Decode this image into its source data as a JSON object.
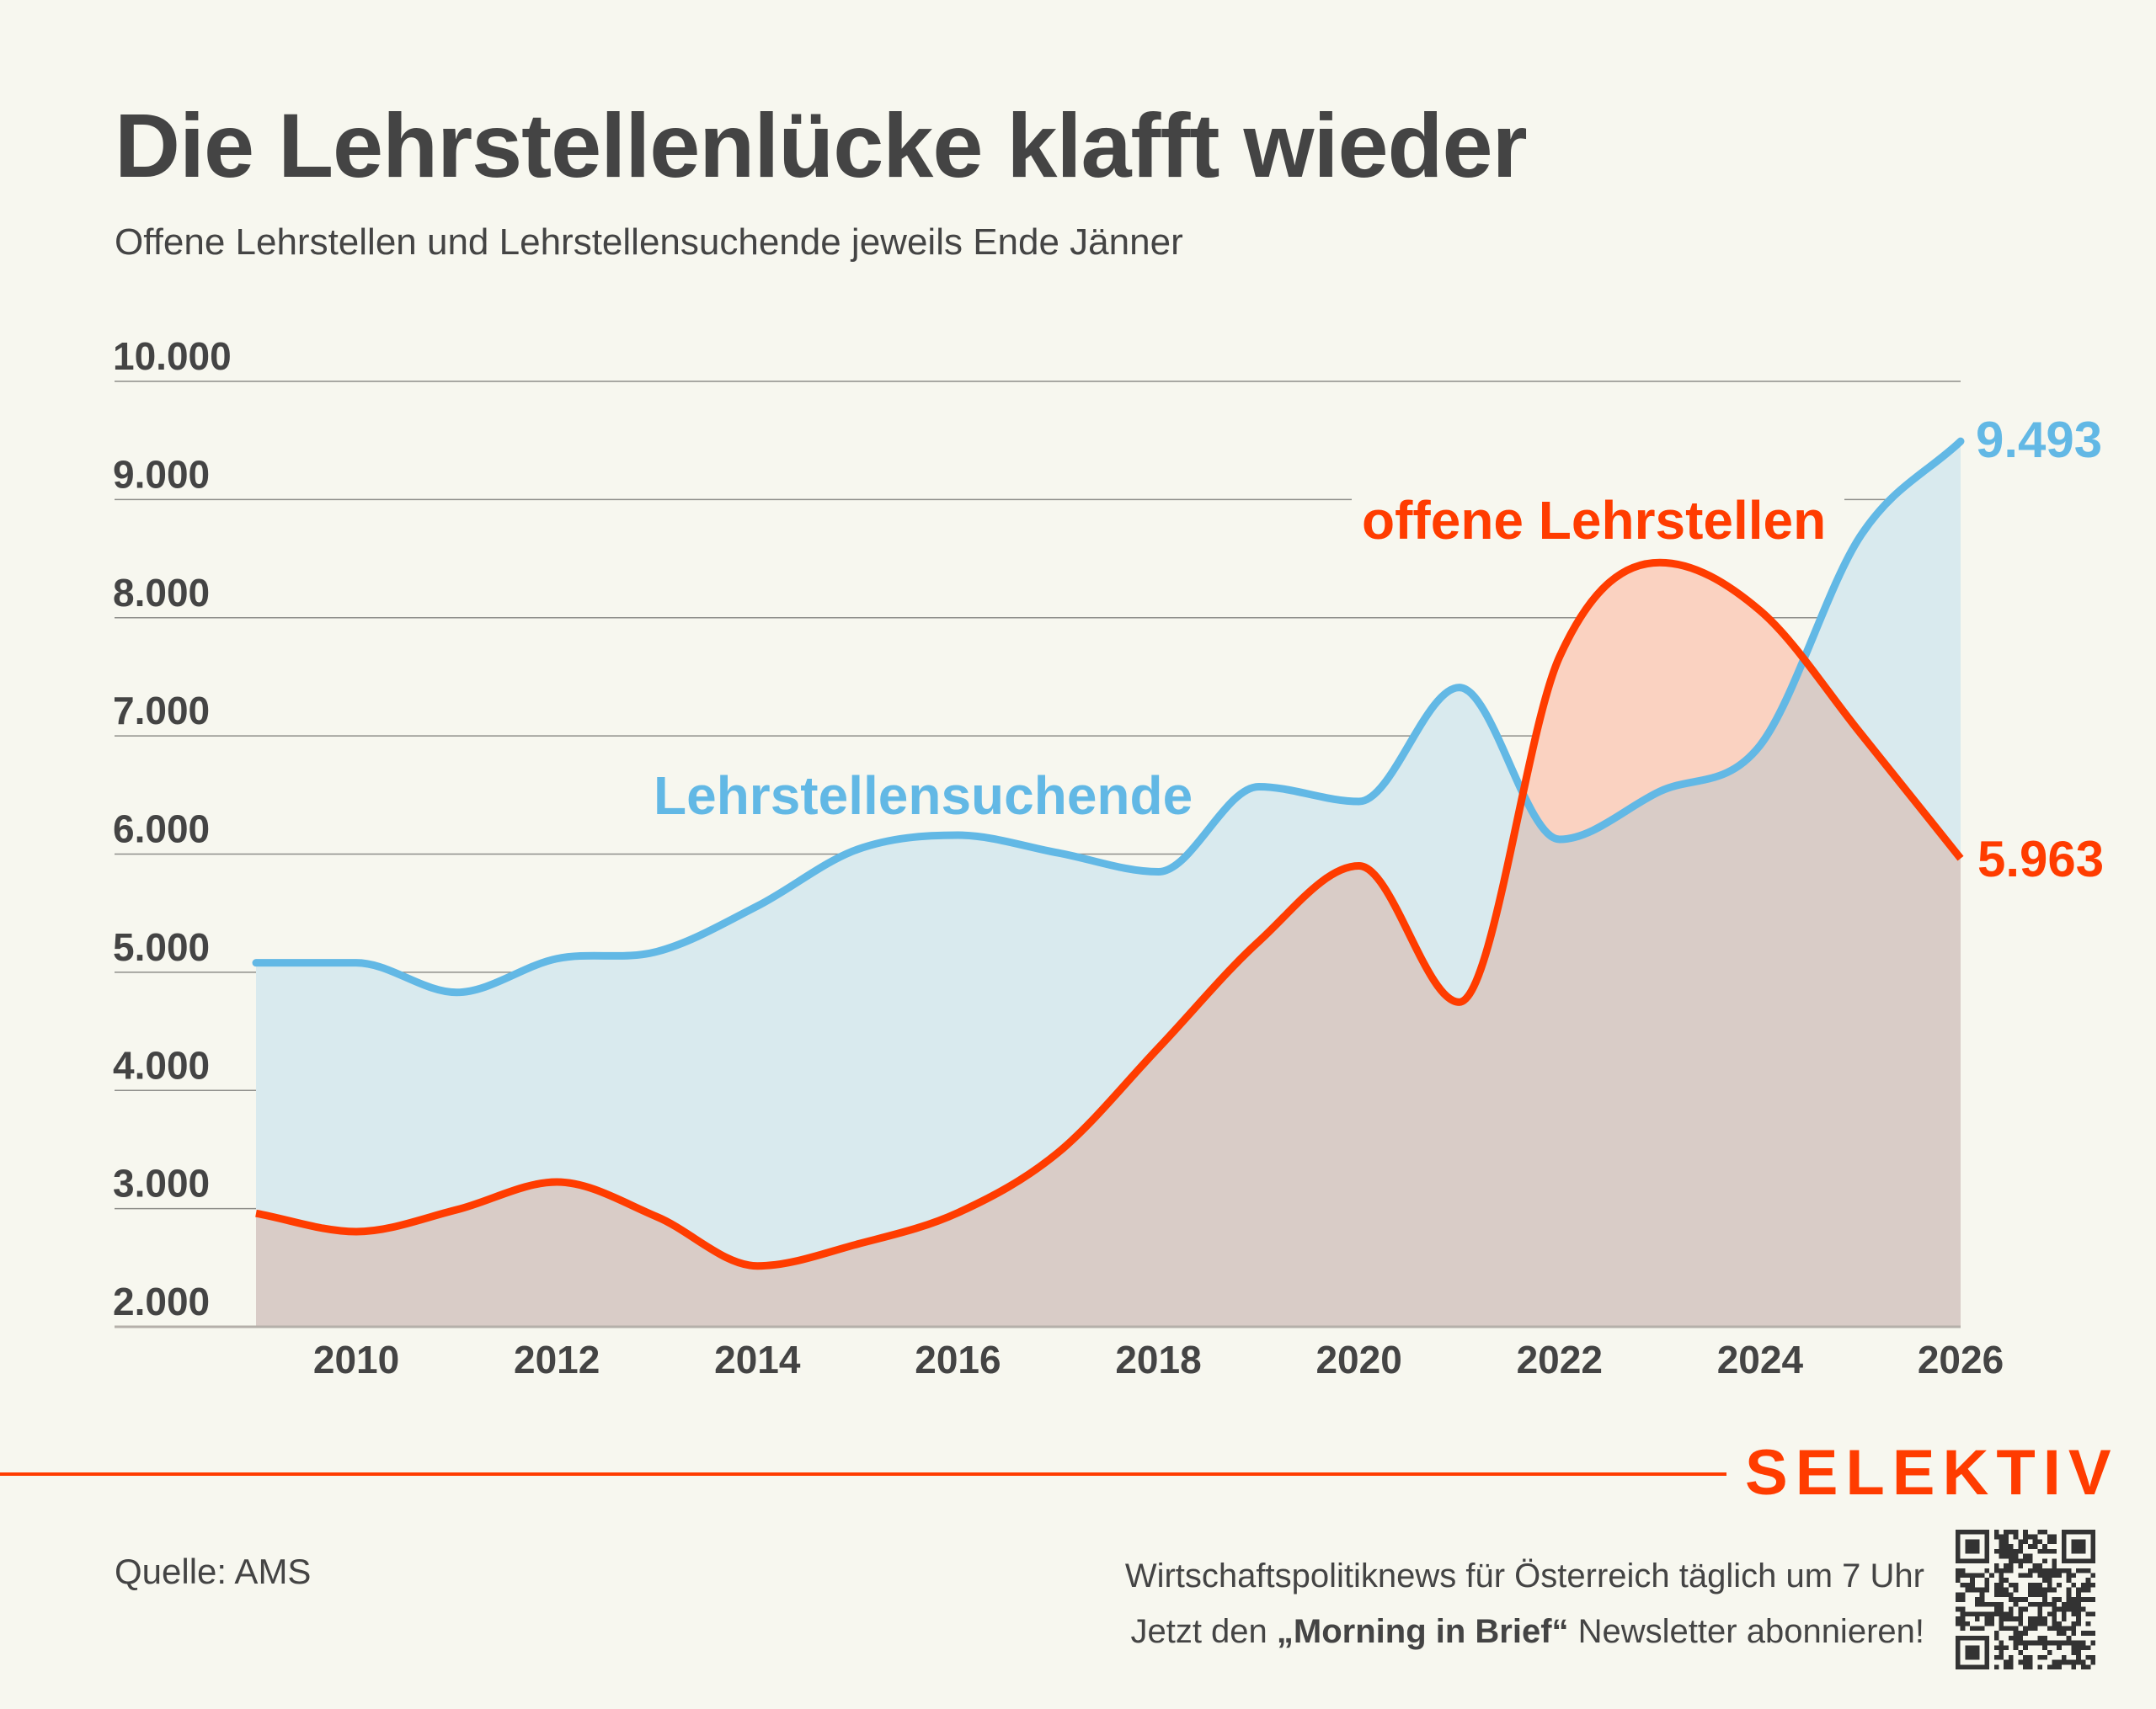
{
  "header": {
    "title": "Die Lehrstellenlücke klafft wieder",
    "subtitle": "Offene Lehrstellen und Lehrstellensuchende jeweils Ende Jänner"
  },
  "colors": {
    "background": "#f7f7ef",
    "text": "#444444",
    "suchende_line": "#62b8e5",
    "suchende_fill": "#d9eaee",
    "offene_line": "#ff3c00",
    "offene_fill": "#fad2c1",
    "overlap_fill": "#d9ccc7",
    "grid": "#8e8e8a",
    "brand": "#ff3c00"
  },
  "chart_data": {
    "type": "area",
    "title": "Die Lehrstellenlücke klafft wieder",
    "subtitle": "Offene Lehrstellen und Lehrstellensuchende jeweils Ende Jänner",
    "xlabel": "",
    "ylabel": "",
    "x": [
      2009,
      2010,
      2011,
      2012,
      2013,
      2014,
      2015,
      2016,
      2017,
      2018,
      2019,
      2020,
      2021,
      2022,
      2023,
      2024,
      2025,
      2026
    ],
    "xlim": [
      2009,
      2026
    ],
    "ylim": [
      2000,
      10000
    ],
    "grid": true,
    "x_ticks": [
      2010,
      2012,
      2014,
      2016,
      2018,
      2020,
      2022,
      2024,
      2026
    ],
    "x_tick_labels": [
      "2010",
      "2012",
      "2014",
      "2016",
      "2018",
      "2020",
      "2022",
      "2024",
      "2026"
    ],
    "y_ticks": [
      2000,
      3000,
      4000,
      5000,
      6000,
      7000,
      8000,
      9000,
      10000
    ],
    "y_tick_labels": [
      "2.000",
      "3.000",
      "4.000",
      "5.000",
      "6.000",
      "7.000",
      "8.000",
      "9.000",
      "10.000"
    ],
    "series": [
      {
        "name": "Lehrstellensuchende",
        "label": "Lehrstellensuchende",
        "color": "#62b8e5",
        "values": [
          5080,
          5080,
          4830,
          5115,
          5175,
          5560,
          6040,
          6160,
          6010,
          5850,
          6570,
          6445,
          7410,
          6125,
          6530,
          6920,
          8690,
          9493
        ],
        "end_label": "9.493"
      },
      {
        "name": "offene Lehrstellen",
        "label": "offene Lehrstellen",
        "color": "#ff3c00",
        "values": [
          2960,
          2805,
          2990,
          3225,
          2930,
          2515,
          2700,
          2965,
          3475,
          4360,
          5260,
          5900,
          4747,
          7670,
          8467,
          8060,
          7024,
          5963
        ],
        "end_label": "5.963"
      }
    ],
    "legend": "inline-labels"
  },
  "footer": {
    "brand": "SELEKTIV",
    "source": "Quelle: AMS",
    "promo_line1": "Wirtschaftspolitiknews für Österreich täglich um 7 Uhr",
    "promo_line2_pre": "Jetzt den ",
    "promo_line2_bold": "„Morning in Brief“",
    "promo_line2_post": " Newsletter abonnieren!",
    "qr_icon": "qr-code-icon"
  }
}
